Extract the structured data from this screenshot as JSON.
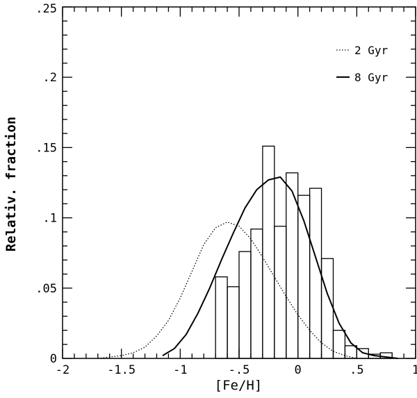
{
  "chart_data": {
    "type": "bar",
    "title": "",
    "xlabel": "[Fe/H]",
    "ylabel": "Relativ. fraction",
    "xlim": [
      -2,
      1
    ],
    "ylim": [
      0,
      0.25
    ],
    "x_ticks": [
      {
        "value": -2,
        "label": "-2"
      },
      {
        "value": -1.5,
        "label": "-1.5"
      },
      {
        "value": -1,
        "label": "-1"
      },
      {
        "value": -0.5,
        "label": "-.5"
      },
      {
        "value": 0,
        "label": "0"
      },
      {
        "value": 0.5,
        "label": ".5"
      },
      {
        "value": 1,
        "label": "1"
      }
    ],
    "y_ticks": [
      {
        "value": 0,
        "label": "0"
      },
      {
        "value": 0.05,
        "label": ".05"
      },
      {
        "value": 0.1,
        "label": ".1"
      },
      {
        "value": 0.15,
        "label": ".15"
      },
      {
        "value": 0.2,
        "label": ".2"
      },
      {
        "value": 0.25,
        "label": ".25"
      }
    ],
    "histogram": {
      "bin_width": 0.1,
      "bins": [
        {
          "left": -0.7,
          "value": 0.058
        },
        {
          "left": -0.6,
          "value": 0.051
        },
        {
          "left": -0.5,
          "value": 0.076
        },
        {
          "left": -0.4,
          "value": 0.092
        },
        {
          "left": -0.3,
          "value": 0.151
        },
        {
          "left": -0.2,
          "value": 0.094
        },
        {
          "left": -0.1,
          "value": 0.132
        },
        {
          "left": 0.0,
          "value": 0.116
        },
        {
          "left": 0.1,
          "value": 0.121
        },
        {
          "left": 0.2,
          "value": 0.071
        },
        {
          "left": 0.3,
          "value": 0.02
        },
        {
          "left": 0.4,
          "value": 0.009
        },
        {
          "left": 0.5,
          "value": 0.007
        },
        {
          "left": 0.6,
          "value": 0.003
        },
        {
          "left": 0.7,
          "value": 0.004
        }
      ]
    },
    "series": [
      {
        "name": "2 Gyr",
        "style": "dotted",
        "x": [
          -1.7,
          -1.6,
          -1.5,
          -1.4,
          -1.3,
          -1.2,
          -1.1,
          -1.0,
          -0.9,
          -0.8,
          -0.7,
          -0.6,
          -0.5,
          -0.4,
          -0.3,
          -0.2,
          -0.1,
          0.0,
          0.1,
          0.2,
          0.3,
          0.4,
          0.5
        ],
        "values": [
          0.0,
          0.001,
          0.002,
          0.004,
          0.008,
          0.016,
          0.027,
          0.043,
          0.062,
          0.081,
          0.093,
          0.097,
          0.094,
          0.085,
          0.072,
          0.058,
          0.044,
          0.031,
          0.02,
          0.011,
          0.005,
          0.002,
          0.0
        ]
      },
      {
        "name": "8 Gyr",
        "style": "solid",
        "x": [
          -1.15,
          -1.05,
          -0.95,
          -0.85,
          -0.75,
          -0.65,
          -0.55,
          -0.45,
          -0.35,
          -0.25,
          -0.15,
          -0.05,
          0.05,
          0.15,
          0.25,
          0.35,
          0.45,
          0.55,
          0.65,
          0.75,
          0.85
        ],
        "values": [
          0.002,
          0.007,
          0.017,
          0.032,
          0.05,
          0.07,
          0.089,
          0.107,
          0.12,
          0.127,
          0.129,
          0.119,
          0.098,
          0.072,
          0.046,
          0.025,
          0.011,
          0.004,
          0.002,
          0.001,
          0.0
        ]
      }
    ],
    "legend": {
      "position": "top-right"
    },
    "grid": false
  }
}
